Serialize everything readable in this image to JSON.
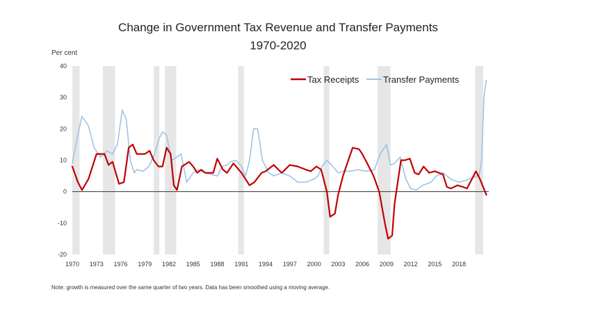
{
  "chart_data": {
    "type": "line",
    "title_line1": "Change in Government Tax Revenue and Transfer Payments",
    "title_line2": "1970-2020",
    "ylabel": "Per cent",
    "note": "Note: growth is measured over the same quarter of two years. Data has been smoothed using a moving average.",
    "ylim": [
      -20,
      40
    ],
    "yticks": [
      -20,
      -10,
      0,
      10,
      20,
      30,
      40
    ],
    "xlim": [
      1970,
      2021.7
    ],
    "xticks": [
      1970,
      1973,
      1976,
      1979,
      1982,
      1985,
      1988,
      1991,
      1994,
      1997,
      2000,
      2003,
      2006,
      2009,
      2012,
      2015,
      2018
    ],
    "legend_position": "top-right",
    "recessions": [
      [
        1970.0,
        1970.9
      ],
      [
        1973.8,
        1975.3
      ],
      [
        1980.1,
        1980.8
      ],
      [
        1981.5,
        1982.9
      ],
      [
        1990.6,
        1991.3
      ],
      [
        2001.2,
        2001.9
      ],
      [
        2007.9,
        2009.5
      ],
      [
        2020.0,
        2021.0
      ]
    ],
    "colors": {
      "tax": "#c00000",
      "transfer": "#9dc3e6",
      "recession": "#e6e6e6",
      "zero": "#333333"
    },
    "series": [
      {
        "name": "Tax Receipts",
        "x": [
          1970,
          1970.7,
          1971.2,
          1972,
          1973,
          1974,
          1974.5,
          1975,
          1975.8,
          1976.4,
          1977,
          1977.5,
          1978,
          1979,
          1979.6,
          1980.1,
          1980.7,
          1981.2,
          1981.7,
          1982.2,
          1982.6,
          1983,
          1983.6,
          1984.5,
          1985,
          1985.5,
          1986,
          1986.5,
          1987.5,
          1988,
          1988.7,
          1989.2,
          1990,
          1991,
          1992,
          1992.6,
          1993.5,
          1994,
          1995,
          1996,
          1997,
          1998,
          1999,
          1999.6,
          2000.3,
          2000.9,
          2001.6,
          2002,
          2002.6,
          2003,
          2003.6,
          2004,
          2004.8,
          2005.6,
          2006,
          2006.6,
          2007.4,
          2008.1,
          2008.8,
          2009.2,
          2009.7,
          2010,
          2010.8,
          2011.3,
          2011.9,
          2012.5,
          2013,
          2013.6,
          2014.3,
          2015,
          2016,
          2016.5,
          2017,
          2017.8,
          2018.5,
          2019,
          2019.6,
          2020.1,
          2020.6,
          2021,
          2021.4
        ],
        "values": [
          8,
          3,
          0.5,
          4,
          12,
          12,
          8.5,
          9.5,
          2.5,
          3,
          14,
          15,
          12,
          12,
          13,
          10,
          8,
          8,
          14,
          12,
          2,
          0.5,
          8,
          9.5,
          8,
          6,
          7,
          6,
          6,
          10.5,
          7,
          6,
          9,
          6,
          2,
          3,
          6,
          6.5,
          8.5,
          6,
          8.5,
          8,
          7,
          6.5,
          8,
          7,
          0,
          -8,
          -7,
          -1,
          5,
          8,
          14,
          13.5,
          12,
          9,
          5,
          0,
          -10,
          -15,
          -14,
          -4,
          10,
          10,
          10.5,
          6,
          5.5,
          8,
          6,
          6.5,
          5.5,
          1.5,
          1,
          2,
          1.5,
          1,
          4,
          6.5,
          4,
          1.5,
          -1
        ]
      },
      {
        "name": "Transfer Payments",
        "x": [
          1970,
          1970.6,
          1971.2,
          1972,
          1972.7,
          1973.5,
          1974.3,
          1975,
          1975.6,
          1976.2,
          1976.7,
          1977.2,
          1977.7,
          1978,
          1978.8,
          1979.5,
          1980.2,
          1980.8,
          1981.2,
          1981.7,
          1982.3,
          1983,
          1983.5,
          1984.2,
          1985,
          1985.7,
          1986.5,
          1987.2,
          1988,
          1988.6,
          1989.2,
          1989.6,
          1990.3,
          1991,
          1991.5,
          1992,
          1992.5,
          1993,
          1993.6,
          1994.4,
          1995,
          1996,
          1997,
          1998,
          1999,
          2000,
          2000.5,
          2001,
          2001.6,
          2002,
          2003,
          2003.6,
          2004.5,
          2005.5,
          2006.5,
          2007.5,
          2008.2,
          2008.5,
          2009,
          2009.5,
          2010,
          2010.7,
          2011.4,
          2012,
          2012.7,
          2013.5,
          2014.5,
          2015.2,
          2016,
          2017,
          2018,
          2018.7,
          2019.2,
          2019.8,
          2020.2,
          2020.5,
          2020.8,
          2021.1,
          2021.4
        ],
        "values": [
          9,
          17,
          24,
          21,
          14,
          11,
          13,
          12,
          15,
          26,
          23,
          10,
          6,
          7,
          6.5,
          8,
          12,
          17,
          19,
          18,
          10,
          11,
          12,
          3,
          6,
          7,
          6,
          5.5,
          5,
          8,
          8.5,
          9.5,
          10,
          8,
          5,
          10,
          20,
          20,
          10,
          6,
          5,
          6,
          5,
          3,
          3,
          4,
          5,
          8,
          10,
          9,
          6,
          6.5,
          6.5,
          7,
          6.5,
          7,
          12,
          13,
          15,
          8.5,
          9,
          11,
          4,
          1,
          0.5,
          2,
          3,
          5,
          6,
          4,
          3,
          3.5,
          4,
          4.5,
          5,
          5,
          10,
          30,
          35.5
        ]
      }
    ]
  }
}
